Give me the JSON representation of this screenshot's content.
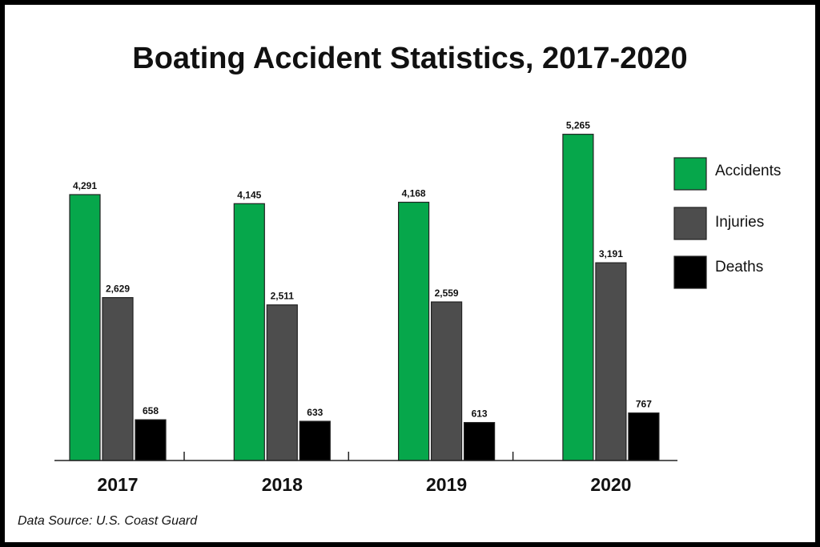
{
  "chart_data": {
    "type": "bar",
    "title": "Boating Accident Statistics, 2017-2020",
    "categories": [
      "2017",
      "2018",
      "2019",
      "2020"
    ],
    "series": [
      {
        "name": "Accidents",
        "values": [
          4291,
          4145,
          4168,
          5265
        ],
        "labels": [
          "4,291",
          "4,145",
          "4,168",
          "5,265"
        ],
        "color": "#06a74b"
      },
      {
        "name": "Injuries",
        "values": [
          2629,
          2511,
          2559,
          3191
        ],
        "labels": [
          "2,629",
          "2,511",
          "2,559",
          "3,191"
        ],
        "color": "#4d4d4d"
      },
      {
        "name": "Deaths",
        "values": [
          658,
          633,
          613,
          767
        ],
        "labels": [
          "658",
          "633",
          "613",
          "767"
        ],
        "color": "#000000"
      }
    ],
    "xlabel": "",
    "ylabel": "",
    "ylim": [
      0,
      5300
    ],
    "grid": false,
    "legend": "right",
    "source": "Data Source: U.S. Coast Guard"
  }
}
